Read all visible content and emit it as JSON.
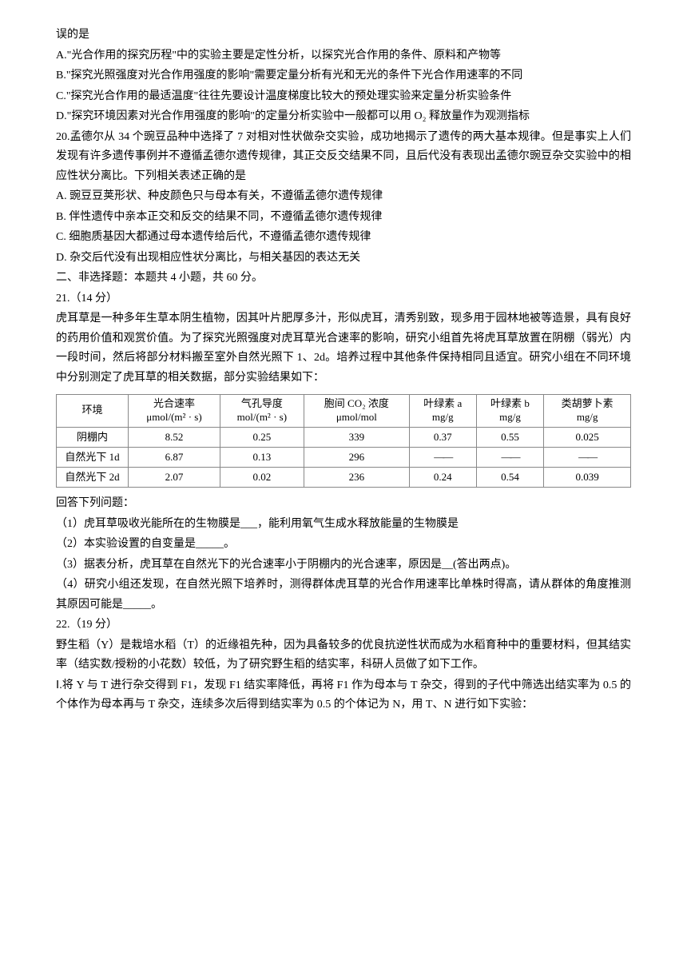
{
  "text": {
    "intro_cont": "误的是",
    "optA": "A.\"光合作用的探究历程\"中的实验主要是定性分析，以探究光合作用的条件、原料和产物等",
    "optB": "B.\"探究光照强度对光合作用强度的影响\"需要定量分析有光和无光的条件下光合作用速率的不同",
    "optC": "C.\"探究光合作用的最适温度\"往往先要设计温度梯度比较大的预处理实验来定量分析实验条件",
    "optD": "D.\"探究环境因素对光合作用强度的影响\"的定量分析实验中一般都可以用 O₂ 释放量作为观测指标",
    "q20_intro": "20.孟德尔从 34 个豌豆品种中选择了 7 对相对性状做杂交实验，成功地揭示了遗传的两大基本规律。但是事实上人们发现有许多遗传事例并不遵循孟德尔遗传规律，其正交反交结果不同，且后代没有表现出孟德尔豌豆杂交实验中的相应性状分离比。下列相关表述正确的是",
    "q20_A": "A. 豌豆豆荚形状、种皮颜色只与母本有关，不遵循孟德尔遗传规律",
    "q20_B": "B. 伴性遗传中亲本正交和反交的结果不同，不遵循孟德尔遗传规律",
    "q20_C": "C. 细胞质基因大都通过母本遗传给后代，不遵循孟德尔遗传规律",
    "q20_D": "D. 杂交后代没有出现相应性状分离比，与相关基因的表达无关",
    "section2": "二、非选择题：本题共 4 小题，共 60 分。",
    "q21_title": "21.（14 分）",
    "q21_intro": "虎耳草是一种多年生草本阴生植物，因其叶片肥厚多汁，形似虎耳，清秀别致，现多用于园林地被等造景，具有良好的药用价值和观赏价值。为了探究光照强度对虎耳草光合速率的影响，研究小组首先将虎耳草放置在阴棚（弱光）内一段时间，然后将部分材料搬至室外自然光照下 1、2d。培养过程中其他条件保持相同且适宜。研究小组在不同环境中分别测定了虎耳草的相关数据，部分实验结果如下：",
    "q21_answer_intro": "回答下列问题：",
    "q21_1": "（1）虎耳草吸收光能所在的生物膜是___，能利用氧气生成水释放能量的生物膜是",
    "q21_2": "（2）本实验设置的自变量是_____。",
    "q21_3": "（3）据表分析，虎耳草在自然光下的光合速率小于阴棚内的光合速率，原因是__(答出两点)。",
    "q21_4": "（4）研究小组还发现，在自然光照下培养时，测得群体虎耳草的光合作用速率比单株时得高，请从群体的角度推测其原因可能是_____。",
    "q22_title": "22.（19 分）",
    "q22_intro": "野生稻（Y）是栽培水稻（T）的近缘祖先种，因为具备较多的优良抗逆性状而成为水稻育种中的重要材料，但其结实率（结实数/授粉的小花数）较低，为了研究野生稻的结实率，科研人员做了如下工作。",
    "q22_p1": "Ⅰ.将 Y 与 T 进行杂交得到 F1，发现 F1 结实率降低，再将 F1 作为母本与 T 杂交，得到的子代中筛选出结实率为 0.5 的个体作为母本再与 T 杂交，连续多次后得到结实率为 0.5 的个体记为 N，用 T、N 进行如下实验："
  },
  "table": {
    "headers": {
      "col0": "环境",
      "col1_l1": "光合速率",
      "col1_l2": "μmol/(m² · s)",
      "col2_l1": "气孔导度",
      "col2_l2": "mol/(m² · s)",
      "col3_l1": "胞间 CO₂ 浓度",
      "col3_l2": "μmol/mol",
      "col4_l1": "叶绿素 a",
      "col4_l2": "mg/g",
      "col5_l1": "叶绿素 b",
      "col5_l2": "mg/g",
      "col6_l1": "类胡萝卜素",
      "col6_l2": "mg/g"
    },
    "rows": [
      {
        "label": "阴棚内",
        "c1": "8.52",
        "c2": "0.25",
        "c3": "339",
        "c4": "0.37",
        "c5": "0.55",
        "c6": "0.025"
      },
      {
        "label": "自然光下 1d",
        "c1": "6.87",
        "c2": "0.13",
        "c3": "296",
        "c4": "——",
        "c5": "——",
        "c6": "——"
      },
      {
        "label": "自然光下 2d",
        "c1": "2.07",
        "c2": "0.02",
        "c3": "236",
        "c4": "0.24",
        "c5": "0.54",
        "c6": "0.039"
      }
    ]
  },
  "style": {
    "background_color": "#ffffff",
    "text_color": "#000000",
    "border_color": "#888888",
    "font_size_body": 14,
    "font_size_table": 13
  }
}
